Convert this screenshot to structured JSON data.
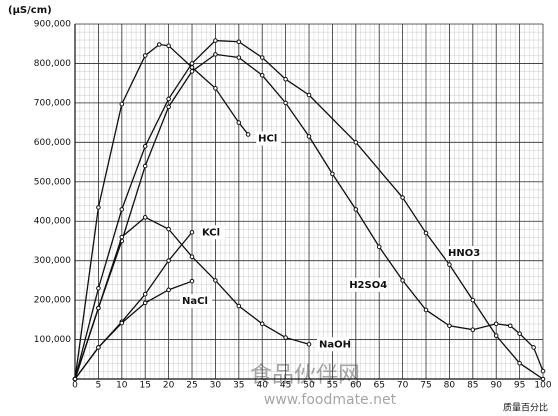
{
  "chart_data": {
    "type": "line",
    "y_label": "(μS/cm)",
    "x_label": "质量百分比",
    "watermark": {
      "title": "食品伙伴网",
      "url": "www.foodmate.net"
    },
    "xlim": [
      0,
      100
    ],
    "ylim": [
      0,
      900000
    ],
    "xticks": [
      0,
      5,
      10,
      15,
      20,
      25,
      30,
      35,
      40,
      45,
      50,
      55,
      60,
      65,
      70,
      75,
      80,
      85,
      90,
      95,
      100
    ],
    "yticks": [
      {
        "value": 100000,
        "label": "100,000"
      },
      {
        "value": 200000,
        "label": "200,000"
      },
      {
        "value": 300000,
        "label": "300,000"
      },
      {
        "value": 400000,
        "label": "400,000"
      },
      {
        "value": 500000,
        "label": "500,000"
      },
      {
        "value": 600000,
        "label": "600,000"
      },
      {
        "value": 700000,
        "label": "700,000"
      },
      {
        "value": 800000,
        "label": "800,000"
      },
      {
        "value": 900000,
        "label": "900,000"
      }
    ],
    "grid": true,
    "color": "#111111",
    "series": [
      {
        "name": "HCl",
        "x": [
          0,
          5,
          10,
          15,
          18,
          20,
          25,
          30,
          35,
          37
        ],
        "values": [
          0,
          435000,
          697000,
          820000,
          848000,
          845000,
          790000,
          737000,
          650000,
          620000
        ]
      },
      {
        "name": "HNO3",
        "x": [
          0,
          5,
          10,
          15,
          20,
          25,
          30,
          35,
          40,
          45,
          50,
          60,
          70,
          75,
          80,
          85,
          90,
          95,
          100
        ],
        "values": [
          0,
          230000,
          430000,
          590000,
          710000,
          800000,
          858000,
          855000,
          815000,
          760000,
          720000,
          600000,
          460000,
          370000,
          290000,
          200000,
          110000,
          40000,
          0
        ]
      },
      {
        "name": "H2SO4",
        "x": [
          0,
          5,
          10,
          15,
          20,
          25,
          30,
          35,
          40,
          45,
          50,
          55,
          60,
          65,
          70,
          75,
          80,
          85,
          90,
          93,
          95,
          98,
          100
        ],
        "values": [
          0,
          180000,
          350000,
          540000,
          690000,
          780000,
          823000,
          815000,
          770000,
          700000,
          615000,
          520000,
          430000,
          335000,
          250000,
          175000,
          135000,
          125000,
          140000,
          135000,
          115000,
          80000,
          20000
        ]
      },
      {
        "name": "KCl",
        "x": [
          0,
          5,
          10,
          15,
          20,
          25
        ],
        "values": [
          0,
          80000,
          145000,
          215000,
          300000,
          372000
        ]
      },
      {
        "name": "NaCl",
        "x": [
          0,
          5,
          10,
          15,
          20,
          25
        ],
        "values": [
          0,
          80000,
          142000,
          193000,
          226000,
          248000
        ]
      },
      {
        "name": "NaOH",
        "x": [
          0,
          5,
          10,
          15,
          20,
          25,
          30,
          35,
          40,
          45,
          50
        ],
        "values": [
          0,
          180000,
          360000,
          410000,
          380000,
          310000,
          250000,
          185000,
          140000,
          105000,
          88000
        ]
      }
    ]
  }
}
